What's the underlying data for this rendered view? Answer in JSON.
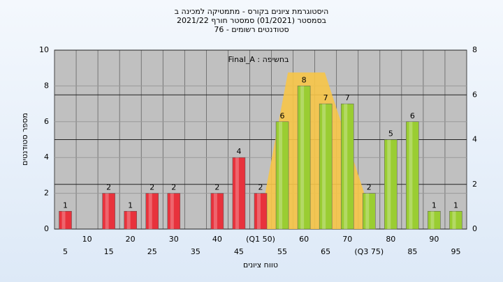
{
  "chart_data": {
    "type": "bar",
    "title": [
      "היסטוגרמת ציונים בקורס - מתמטיקה למכינה ב",
      "בסמסטר  (01/2021)  סמסטר חורף 2021/22",
      "סטודנטים רשומים - 76"
    ],
    "annotation": "Final_A : בחשיפה",
    "ylabel": "מספר סטודנטים",
    "xlabel": "טווח ציונים",
    "categories": [
      "5",
      "10",
      "15",
      "20",
      "25",
      "30",
      "35",
      "40",
      "45",
      "(Q1 50)",
      "55",
      "60",
      "65",
      "70",
      "(Q3 75)",
      "80",
      "85",
      "90",
      "95"
    ],
    "values": [
      1,
      0,
      2,
      1,
      2,
      2,
      0,
      2,
      4,
      2,
      6,
      8,
      7,
      7,
      2,
      5,
      6,
      1,
      1
    ],
    "colors": [
      "#e8323c",
      "#e8323c",
      "#e8323c",
      "#e8323c",
      "#e8323c",
      "#e8323c",
      "#e8323c",
      "#e8323c",
      "#e8323c",
      "#e8323c",
      "#9acd32",
      "#9acd32",
      "#9acd32",
      "#9acd32",
      "#9acd32",
      "#9acd32",
      "#9acd32",
      "#9acd32",
      "#9acd32"
    ],
    "area": {
      "color": "#f7c548",
      "x": [
        49.5,
        56.3,
        64.8,
        76.6
      ],
      "values": [
        0,
        8.75,
        8.75,
        0
      ]
    },
    "ylim": [
      0,
      10
    ],
    "yticks": [
      0,
      2,
      4,
      6,
      8,
      10
    ],
    "y2lim": [
      0,
      8
    ],
    "y2ticks": [
      0,
      2,
      4,
      6,
      8
    ],
    "grid": true
  }
}
